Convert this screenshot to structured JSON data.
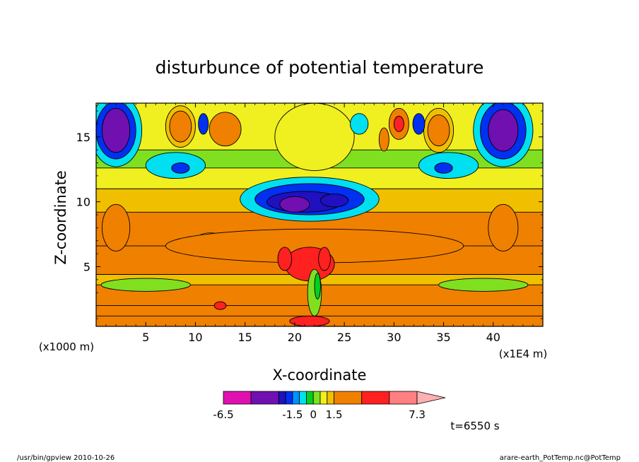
{
  "chart_data": {
    "type": "heatmap",
    "title": "disturbunce of potential temperature",
    "xlabel": "X-coordinate",
    "ylabel": "Z-coordinate",
    "x_unit_label": "(x1E4 m)",
    "y_unit_label": "(x1000 m)",
    "xlim": [
      0,
      45
    ],
    "ylim": [
      0.4,
      17.6
    ],
    "xticks": [
      "5",
      "10",
      "15",
      "20",
      "25",
      "30",
      "35",
      "40"
    ],
    "yticks": [
      "5",
      "10",
      "15"
    ],
    "colorbar": {
      "min_label": "-6.5",
      "max_label": "7.3",
      "tick_labels": [
        "-6.5",
        "-1.5",
        "0",
        "1.5",
        "7.3"
      ],
      "bins": [
        {
          "lo": -6.5,
          "hi": -4.5,
          "color": "#e010b0"
        },
        {
          "lo": -4.5,
          "hi": -3.0,
          "color": "#7010b0"
        },
        {
          "lo": -3.0,
          "hi": -2.0,
          "color": "#2010c0"
        },
        {
          "lo": -2.0,
          "hi": -1.5,
          "color": "#0030f0"
        },
        {
          "lo": -1.5,
          "hi": -1.0,
          "color": "#0090ff"
        },
        {
          "lo": -1.0,
          "hi": -0.5,
          "color": "#00e0f0"
        },
        {
          "lo": -0.5,
          "hi": 0.0,
          "color": "#00d020"
        },
        {
          "lo": 0.0,
          "hi": 0.5,
          "color": "#80e020"
        },
        {
          "lo": 0.5,
          "hi": 1.0,
          "color": "#f0f020"
        },
        {
          "lo": 1.0,
          "hi": 1.5,
          "color": "#f0c000"
        },
        {
          "lo": 1.5,
          "hi": 3.0,
          "color": "#f08000"
        },
        {
          "lo": 3.0,
          "hi": 4.5,
          "color": "#ff2020"
        },
        {
          "lo": 4.5,
          "hi": 7.3,
          "color": "#ff8080"
        }
      ],
      "extend_color": "#ffb0b0"
    },
    "bands": [
      {
        "z0": 0.4,
        "z1": 1.2,
        "v": 1.6
      },
      {
        "z0": 1.2,
        "z1": 2.0,
        "v": 1.8
      },
      {
        "z0": 2.0,
        "z1": 3.6,
        "v": 2.0
      },
      {
        "z0": 3.6,
        "z1": 4.4,
        "v": 1.2
      },
      {
        "z0": 4.4,
        "z1": 6.6,
        "v": 2.4
      },
      {
        "z0": 6.6,
        "z1": 9.2,
        "v": 2.0
      },
      {
        "z0": 9.2,
        "z1": 11.0,
        "v": 1.2
      },
      {
        "z0": 11.0,
        "z1": 12.6,
        "v": 0.6
      },
      {
        "z0": 12.6,
        "z1": 14.0,
        "v": 0.2
      },
      {
        "z0": 14.0,
        "z1": 17.6,
        "v": 0.7
      }
    ],
    "blobs": [
      {
        "x": 2.0,
        "z": 15.5,
        "rx": 2.6,
        "rz": 2.8,
        "v": -0.7
      },
      {
        "x": 2.0,
        "z": 15.5,
        "rx": 2.0,
        "rz": 2.2,
        "v": -1.8
      },
      {
        "x": 2.0,
        "z": 15.5,
        "rx": 1.4,
        "rz": 1.7,
        "v": -3.5
      },
      {
        "x": 41.0,
        "z": 15.5,
        "rx": 3.0,
        "rz": 2.8,
        "v": -0.7
      },
      {
        "x": 41.0,
        "z": 15.5,
        "rx": 2.3,
        "rz": 2.2,
        "v": -1.8
      },
      {
        "x": 41.0,
        "z": 15.5,
        "rx": 1.5,
        "rz": 1.6,
        "v": -3.5
      },
      {
        "x": 2.0,
        "z": 8.0,
        "rx": 1.4,
        "rz": 1.8,
        "v": 2.0
      },
      {
        "x": 41.0,
        "z": 8.0,
        "rx": 1.5,
        "rz": 1.8,
        "v": 2.0
      },
      {
        "x": 21.5,
        "z": 10.2,
        "rx": 7.0,
        "rz": 1.7,
        "v": -0.7
      },
      {
        "x": 21.5,
        "z": 10.2,
        "rx": 5.5,
        "rz": 1.2,
        "v": -1.8
      },
      {
        "x": 21.0,
        "z": 10.0,
        "rx": 3.8,
        "rz": 0.8,
        "v": -2.5
      },
      {
        "x": 20.0,
        "z": 9.8,
        "rx": 1.5,
        "rz": 0.6,
        "v": -3.5
      },
      {
        "x": 24.0,
        "z": 10.1,
        "rx": 1.4,
        "rz": 0.5,
        "v": -2.5
      },
      {
        "x": 22.0,
        "z": 15.0,
        "rx": 4.0,
        "rz": 2.6,
        "v": 0.7
      },
      {
        "x": 8.5,
        "z": 15.8,
        "rx": 1.5,
        "rz": 1.6,
        "v": 1.2
      },
      {
        "x": 8.5,
        "z": 15.8,
        "rx": 1.1,
        "rz": 1.2,
        "v": 2.2
      },
      {
        "x": 34.5,
        "z": 15.5,
        "rx": 1.5,
        "rz": 1.7,
        "v": 1.2
      },
      {
        "x": 34.5,
        "z": 15.5,
        "rx": 1.1,
        "rz": 1.2,
        "v": 2.2
      },
      {
        "x": 30.5,
        "z": 16.0,
        "rx": 1.0,
        "rz": 1.2,
        "v": 2.2
      },
      {
        "x": 30.5,
        "z": 16.0,
        "rx": 0.5,
        "rz": 0.6,
        "v": 3.6
      },
      {
        "x": 29.0,
        "z": 14.8,
        "rx": 0.5,
        "rz": 0.9,
        "v": 2.2
      },
      {
        "x": 13.0,
        "z": 15.6,
        "rx": 1.6,
        "rz": 1.3,
        "v": 2.2
      },
      {
        "x": 10.8,
        "z": 16.0,
        "rx": 0.5,
        "rz": 0.8,
        "v": -1.8
      },
      {
        "x": 32.5,
        "z": 16.0,
        "rx": 0.6,
        "rz": 0.8,
        "v": -1.8
      },
      {
        "x": 26.5,
        "z": 16.0,
        "rx": 0.9,
        "rz": 0.8,
        "v": -0.7
      },
      {
        "x": 8.0,
        "z": 12.8,
        "rx": 3.0,
        "rz": 1.0,
        "v": -0.7
      },
      {
        "x": 8.5,
        "z": 12.6,
        "rx": 0.9,
        "rz": 0.4,
        "v": -1.8
      },
      {
        "x": 35.5,
        "z": 12.8,
        "rx": 3.0,
        "rz": 1.0,
        "v": -0.7
      },
      {
        "x": 35.0,
        "z": 12.6,
        "rx": 0.9,
        "rz": 0.4,
        "v": -1.8
      },
      {
        "x": 11.5,
        "z": 7.0,
        "rx": 1.5,
        "rz": 0.6,
        "v": 1.2
      },
      {
        "x": 22.0,
        "z": 6.6,
        "rx": 15.0,
        "rz": 1.3,
        "v": 2.4
      },
      {
        "x": 21.5,
        "z": 5.2,
        "rx": 2.5,
        "rz": 1.3,
        "v": 3.6
      },
      {
        "x": 19.0,
        "z": 5.6,
        "rx": 0.7,
        "rz": 0.9,
        "v": 3.6
      },
      {
        "x": 23.0,
        "z": 5.6,
        "rx": 0.6,
        "rz": 0.9,
        "v": 3.6
      },
      {
        "x": 22.0,
        "z": 3.0,
        "rx": 0.7,
        "rz": 1.8,
        "v": 0.2
      },
      {
        "x": 22.3,
        "z": 3.5,
        "rx": 0.3,
        "rz": 1.0,
        "v": -0.2
      },
      {
        "x": 5.0,
        "z": 3.6,
        "rx": 4.5,
        "rz": 0.5,
        "v": 0.2
      },
      {
        "x": 39.0,
        "z": 3.6,
        "rx": 4.5,
        "rz": 0.5,
        "v": 0.2
      },
      {
        "x": 12.5,
        "z": 2.0,
        "rx": 0.6,
        "rz": 0.3,
        "v": 3.6
      },
      {
        "x": 21.5,
        "z": 0.8,
        "rx": 2.0,
        "rz": 0.4,
        "v": 3.6
      }
    ]
  },
  "annotations": {
    "time_label": "t=6550 s",
    "footer_left": "/usr/bin/gpview   2010-10-26",
    "footer_right": "arare-earth_PotTemp.nc@PotTemp"
  }
}
